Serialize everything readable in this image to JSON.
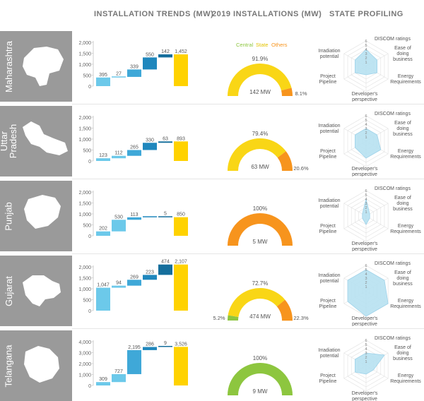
{
  "headers": {
    "trends": "INSTALLATION TRENDS (MW)",
    "installations": "2019 INSTALLATIONS (MW)",
    "profiling": "STATE PROFILING"
  },
  "legend": {
    "central": "Central",
    "state": "State",
    "others": "Others"
  },
  "colors": {
    "central": "#8dc63f",
    "state": "#f9d616",
    "others": "#f7941d",
    "bar_shades": [
      "#6cc9ea",
      "#6cc9ea",
      "#3fa8d8",
      "#1f87bd",
      "#156e9c",
      "#0b4f73"
    ],
    "total_bar": "#ffd200",
    "state_band": "#9a9a9a",
    "radar_fill": "#b7e1f1"
  },
  "radar_axes": [
    "DISCOM ratings",
    "Ease of doing business",
    "Energy Requirements",
    "Developer's perspective",
    "Project Pipeline",
    "Irradiation potential"
  ],
  "radar_scale": [
    "6",
    "5",
    "4",
    "3",
    "2",
    "1"
  ],
  "chart_data": [
    {
      "type": "bar",
      "state": "Maharashtra",
      "ylim": [
        0,
        2000
      ],
      "yticks": [
        "2,000",
        "1,500",
        "1,000",
        "500",
        "0"
      ],
      "increments": [
        395,
        27,
        339,
        550,
        142
      ],
      "total": 1452,
      "value_labels": [
        "395",
        "27",
        "339",
        "550",
        "142",
        "1,452"
      ]
    },
    {
      "type": "pie",
      "state": "Maharashtra",
      "shares_pct": {
        "central": 0,
        "state": 91.9,
        "others": 8.1
      },
      "labels": [
        "91.9%",
        "8.1%"
      ],
      "total_label": "142 MW"
    },
    {
      "type": "radar",
      "state": "Maharashtra",
      "max": 6,
      "values": [
        4,
        3,
        3,
        2,
        3,
        3
      ]
    },
    {
      "type": "bar",
      "state": "Uttar Pradesh",
      "ylim": [
        0,
        2000
      ],
      "yticks": [
        "2,000",
        "1,500",
        "1,000",
        "500",
        "0"
      ],
      "increments": [
        123,
        112,
        265,
        330,
        63
      ],
      "total": 893,
      "value_labels": [
        "123",
        "112",
        "265",
        "330",
        "63",
        "893"
      ]
    },
    {
      "type": "pie",
      "state": "Uttar Pradesh",
      "shares_pct": {
        "central": 0,
        "state": 79.4,
        "others": 20.6
      },
      "labels": [
        "79.4%",
        "20.6%"
      ],
      "total_label": "63 MW"
    },
    {
      "type": "radar",
      "state": "Uttar Pradesh",
      "max": 6,
      "values": [
        3,
        3,
        4,
        4,
        3,
        3
      ]
    },
    {
      "type": "bar",
      "state": "Punjab",
      "ylim": [
        0,
        2000
      ],
      "yticks": [
        "2,000",
        "1,500",
        "1,000",
        "500",
        "0"
      ],
      "increments": [
        202,
        530,
        113,
        0,
        5
      ],
      "total": 850,
      "value_labels": [
        "202",
        "530",
        "113",
        "",
        "5",
        "850"
      ]
    },
    {
      "type": "pie",
      "state": "Punjab",
      "shares_pct": {
        "central": 0,
        "state": 0,
        "others": 100
      },
      "labels": [
        "100%"
      ],
      "total_label": "5 MW"
    },
    {
      "type": "radar",
      "state": "Punjab",
      "max": 6,
      "values": [
        4,
        1,
        1,
        2,
        1,
        1
      ]
    },
    {
      "type": "bar",
      "state": "Gujarat",
      "ylim": [
        0,
        2000
      ],
      "yticks": [
        "2,000",
        "1,500",
        "1,000",
        "500",
        "0"
      ],
      "increments": [
        1047,
        94,
        269,
        223,
        474
      ],
      "total": 2107,
      "value_labels": [
        "1,047",
        "94",
        "269",
        "223",
        "474",
        "2,107"
      ]
    },
    {
      "type": "pie",
      "state": "Gujarat",
      "shares_pct": {
        "central": 5.2,
        "state": 72.7,
        "others": 22.3
      },
      "labels": [
        "72.7%",
        "5.2%",
        "22.3%"
      ],
      "total_label": "474 MW"
    },
    {
      "type": "radar",
      "state": "Gujarat",
      "max": 6,
      "values": [
        5,
        5,
        6,
        6,
        5,
        5
      ]
    },
    {
      "type": "bar",
      "state": "Telangana",
      "ylim": [
        0,
        4000
      ],
      "yticks": [
        "4,000",
        "3,000",
        "2,000",
        "1,000",
        "0"
      ],
      "increments": [
        309,
        727,
        2195,
        286,
        9
      ],
      "total": 3526,
      "value_labels": [
        "309",
        "727",
        "2,195",
        "286",
        "9",
        "3,526"
      ]
    },
    {
      "type": "pie",
      "state": "Telangana",
      "shares_pct": {
        "central": 100,
        "state": 0,
        "others": 0
      },
      "labels": [
        "100%"
      ],
      "total_label": "9 MW"
    },
    {
      "type": "radar",
      "state": "Telangana",
      "max": 6,
      "values": [
        3,
        5,
        2,
        2,
        3,
        3
      ]
    }
  ],
  "rows": [
    {
      "name_lines": [
        "Maharashtra"
      ]
    },
    {
      "name_lines": [
        "Uttar",
        "Pradesh"
      ]
    },
    {
      "name_lines": [
        "Punjab"
      ]
    },
    {
      "name_lines": [
        "Gujarat"
      ]
    },
    {
      "name_lines": [
        "Telangana"
      ]
    }
  ]
}
